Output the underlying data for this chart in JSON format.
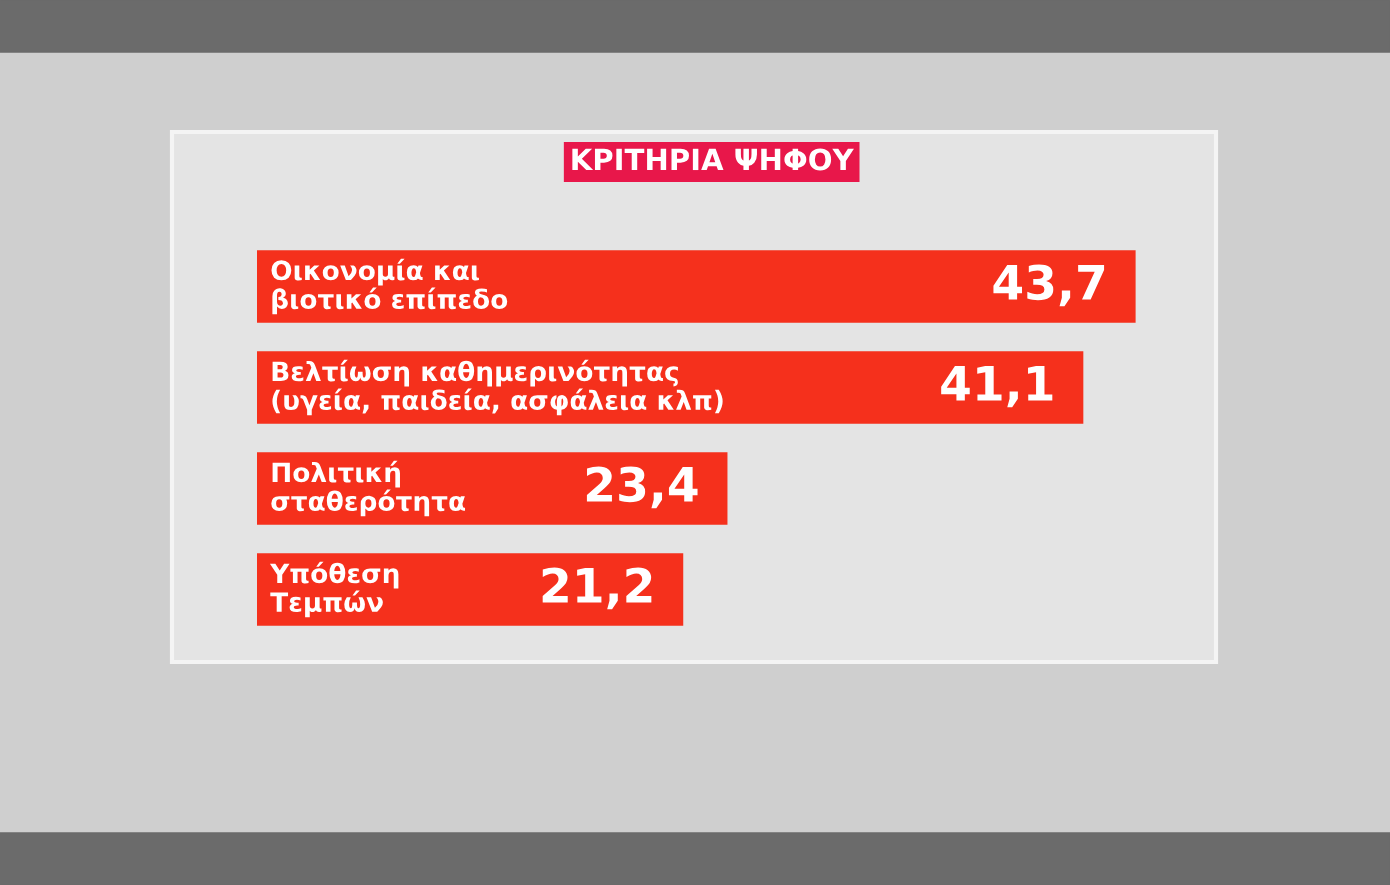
{
  "chart_data": {
    "type": "bar",
    "orientation": "horizontal",
    "title": "ΚΡΙΤΗΡΙΑ ΨΗΦΟΥ",
    "categories": [
      "Οικονομία και\nβιοτικό επίπεδο",
      "Βελτίωση καθημερινότητας\n(υγεία, παιδεία, ασφάλεια κλπ)",
      "Πολιτική\nσταθερότητα",
      "Υπόθεση\nΤεμπών"
    ],
    "values": [
      43.7,
      41.1,
      23.4,
      21.2
    ],
    "value_labels": [
      "43,7",
      "41,1",
      "23,4",
      "21,2"
    ],
    "color": "#f5301c",
    "tick_labels": false,
    "grid": false
  }
}
